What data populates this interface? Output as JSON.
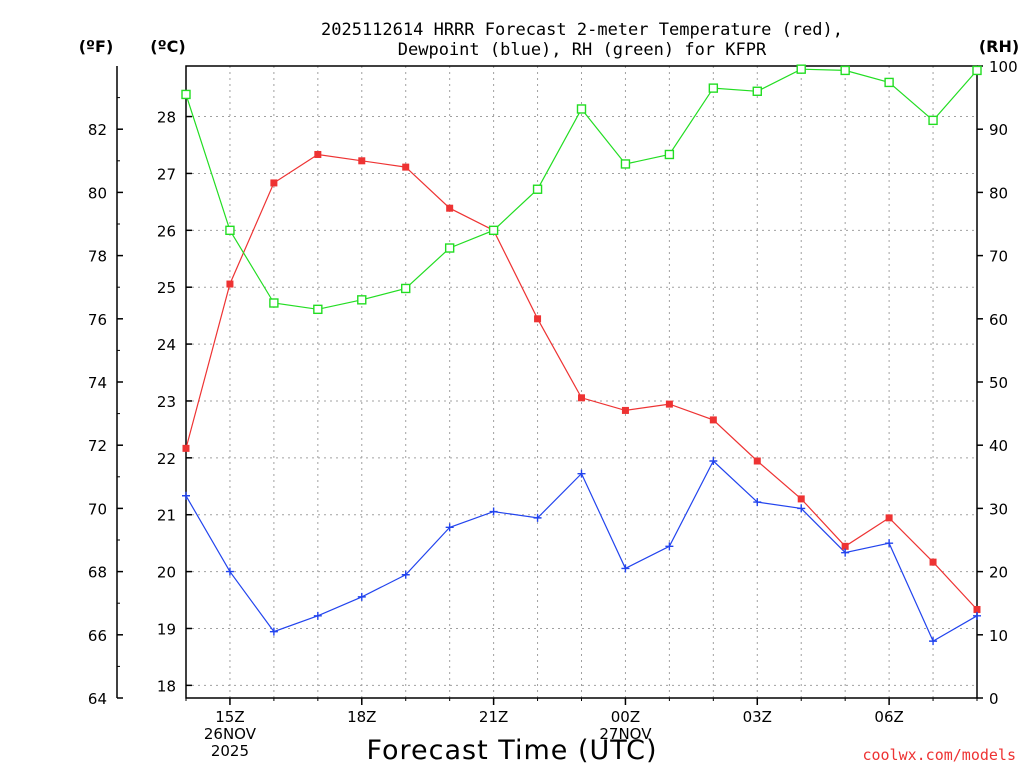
{
  "chart_data": {
    "type": "line",
    "title_lines": [
      "2025112614 HRRR Forecast 2-meter Temperature (red),",
      "Dewpoint (blue), RH (green) for KFPR"
    ],
    "unit_labels": {
      "fahrenheit": "(ºF)",
      "celsius": "(ºC)",
      "rh": "(RH)"
    },
    "xlabel": "Forecast Time (UTC)",
    "credit": "coolwx.com/models",
    "colors": {
      "temperature": "#ee3333",
      "dewpoint": "#2244ee",
      "rh": "#22dd22",
      "grid": "#a0a0a0"
    },
    "fahrenheit_axis": {
      "min": 64,
      "max": 84,
      "ticks": [
        64,
        66,
        68,
        70,
        72,
        74,
        76,
        78,
        80,
        82
      ]
    },
    "celsius_axis": {
      "ticks": [
        18,
        19,
        20,
        21,
        22,
        23,
        24,
        25,
        26,
        27,
        28
      ]
    },
    "rh_axis": {
      "min": 0,
      "max": 100,
      "ticks": [
        0,
        10,
        20,
        30,
        40,
        50,
        60,
        70,
        80,
        90,
        100
      ]
    },
    "x_hours": [
      14,
      15,
      16,
      17,
      18,
      19,
      20,
      21,
      22,
      23,
      24,
      25,
      26,
      27,
      28,
      29,
      30,
      31,
      32
    ],
    "x_range": [
      14,
      32
    ],
    "x_ticks": [
      {
        "hour": 15,
        "lines": [
          "15Z",
          "26NOV",
          "2025"
        ]
      },
      {
        "hour": 18,
        "lines": [
          "18Z"
        ]
      },
      {
        "hour": 21,
        "lines": [
          "21Z"
        ]
      },
      {
        "hour": 24,
        "lines": [
          "00Z",
          "27NOV"
        ]
      },
      {
        "hour": 27,
        "lines": [
          "03Z"
        ]
      },
      {
        "hour": 30,
        "lines": [
          "06Z"
        ]
      }
    ],
    "series": [
      {
        "name": "Temperature",
        "axis": "fahrenheit",
        "marker": "filled-square",
        "color_key": "temperature",
        "values": [
          71.9,
          77.1,
          80.3,
          81.2,
          81.0,
          80.8,
          79.5,
          78.8,
          76.0,
          73.5,
          73.1,
          73.3,
          72.8,
          71.5,
          70.3,
          68.8,
          69.7,
          68.3,
          66.8
        ]
      },
      {
        "name": "Dewpoint",
        "axis": "fahrenheit",
        "marker": "plus",
        "color_key": "dewpoint",
        "values": [
          70.4,
          68.0,
          66.1,
          66.6,
          67.2,
          67.9,
          69.4,
          69.9,
          69.7,
          71.1,
          68.1,
          68.8,
          71.5,
          70.2,
          70.0,
          68.6,
          68.9,
          65.8,
          66.6
        ]
      },
      {
        "name": "RH",
        "axis": "rh",
        "marker": "open-square",
        "color_key": "rh",
        "values": [
          95.5,
          74.0,
          62.5,
          61.5,
          63.0,
          64.8,
          71.2,
          74.0,
          80.5,
          93.2,
          84.5,
          86.0,
          96.5,
          96.0,
          99.5,
          99.3,
          97.4,
          91.4,
          99.3
        ]
      }
    ]
  }
}
